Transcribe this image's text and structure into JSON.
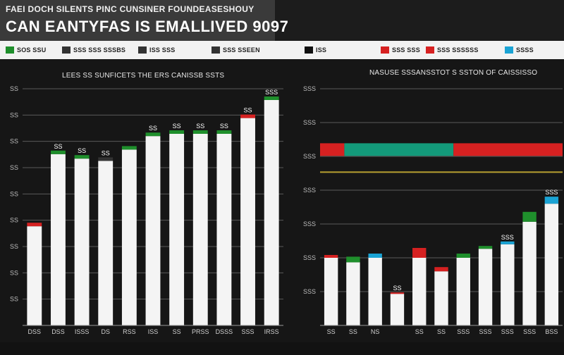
{
  "header": {
    "kicker": "FAEI DOCH SILENTS PINC CUNSINER FOUNDEASESHOUY",
    "title": "CAN EANTYFAS IS EMALLIVED 9097"
  },
  "colors": {
    "bar": "#f4f4f4",
    "green": "#1f8f2c",
    "red": "#d62121",
    "blue": "#1aa3d4",
    "teal": "#139a7a",
    "gold": "#b8a030",
    "grid": "#5a5a5a"
  },
  "legend": [
    {
      "label": "SOS SSU",
      "color": "#1f8f2c"
    },
    {
      "label": "SSS SSS SSSBS",
      "color": "#333333"
    },
    {
      "label": "ISS SSS",
      "color": "#333333"
    },
    {
      "label": "SSS SSEEN",
      "color": "#333333"
    },
    {
      "label": "ISS",
      "color": "#111111"
    },
    {
      "label": "SSS SSS",
      "color": "#d62121"
    },
    {
      "label": "SSS SSSSSS",
      "color": "#d62121"
    },
    {
      "label": "SSSS",
      "color": "#1aa3d4"
    }
  ],
  "chart_data": [
    {
      "type": "bar",
      "title": "LEES SS SUNFICETS THE ERS CANISSB SSTS",
      "categories": [
        "DSS",
        "DSS",
        "ISSS",
        "DS",
        "RSS",
        "ISS",
        "SS",
        "PRSS",
        "DSSS",
        "SSS",
        "IRSS"
      ],
      "values": [
        44,
        76,
        74,
        73,
        78,
        84,
        85,
        85,
        85,
        92,
        100
      ],
      "cap_colors": [
        "#d62121",
        "#1f8f2c",
        "#1f8f2c",
        "#333333",
        "#1f8f2c",
        "#1f8f2c",
        "#1f8f2c",
        "#1f8f2c",
        "#1f8f2c",
        "#d62121",
        "#1f8f2c"
      ],
      "data_labels": [
        "",
        "SS",
        "SS",
        "SS",
        "",
        "SS",
        "SS",
        "SS",
        "SS",
        "SS",
        "SSS"
      ],
      "ylim": [
        0,
        105
      ],
      "yticks": [
        "SS",
        "SS",
        "SS",
        "SS",
        "SS",
        "SS",
        "SS",
        "SS",
        "SS"
      ],
      "grid": true
    },
    {
      "type": "bar",
      "title": "NASUSE SSSANSSTOT S SSTON OF CAISSISSO",
      "categories": [
        "SS",
        "SS",
        "NS",
        "",
        "SS",
        "SS",
        "SSS",
        "SSS",
        "SSS",
        "SSS",
        "BSS"
      ],
      "values": [
        30,
        28,
        30,
        14,
        30,
        24,
        30,
        34,
        36,
        46,
        54
      ],
      "cap_colors": [
        "#d62121",
        "#1f8f2c",
        "#1aa3d4",
        "#d62121",
        "#d62121",
        "#d62121",
        "#1f8f2c",
        "#1f8f2c",
        "#1aa3d4",
        "#1f8f2c",
        "#1aa3d4"
      ],
      "cap_sizes": [
        4,
        8,
        6,
        2,
        14,
        6,
        6,
        4,
        4,
        14,
        10
      ],
      "data_labels": [
        "",
        "",
        "",
        "SS",
        "",
        "",
        "",
        "",
        "SSS",
        "",
        "SSS"
      ],
      "ylim": [
        0,
        105
      ],
      "yticks": [
        "SSS",
        "SSS",
        "SSS",
        "SSS",
        "SSS",
        "SSS",
        "SSS"
      ],
      "band": {
        "value": 78,
        "segments": [
          {
            "from": 0,
            "to": 0.1,
            "color": "#d62121"
          },
          {
            "from": 0.1,
            "to": 0.55,
            "color": "#139a7a"
          },
          {
            "from": 0.55,
            "to": 1,
            "color": "#d62121"
          }
        ]
      },
      "reference_line": 68,
      "grid": true
    }
  ]
}
